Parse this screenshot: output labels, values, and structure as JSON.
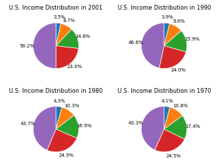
{
  "chart_data": [
    {
      "type": "pie",
      "title": "U.S. Income Distribution in 2001",
      "values": [
        3.5,
        8.7,
        14.8,
        23.0,
        50.2
      ],
      "value_labels": [
        "3.5%",
        "8.7%",
        "14.8%",
        "23.0%",
        "50.2%"
      ],
      "data_labels": true
    },
    {
      "type": "pie",
      "title": "U.S. Income Distribution in 1990",
      "values": [
        3.9,
        9.6,
        15.9,
        24.0,
        46.6
      ],
      "value_labels": [
        "3.9%",
        "9.6%",
        "15.9%",
        "24.0%",
        "46.6%"
      ],
      "data_labels": true
    },
    {
      "type": "pie",
      "title": "U.S. Income Distribution in 1980",
      "values": [
        4.3,
        10.3,
        16.9,
        24.9,
        43.7
      ],
      "value_labels": [
        "4.3%",
        "10.3%",
        "16.9%",
        "24.9%",
        "43.7%"
      ],
      "data_labels": true
    },
    {
      "type": "pie",
      "title": "U.S. Income Distribution in 1970",
      "values": [
        4.1,
        10.8,
        17.4,
        24.5,
        43.3
      ],
      "value_labels": [
        "4.1%",
        "10.8%",
        "17.4%",
        "24.5%",
        "43.3%"
      ],
      "data_labels": true
    }
  ]
}
